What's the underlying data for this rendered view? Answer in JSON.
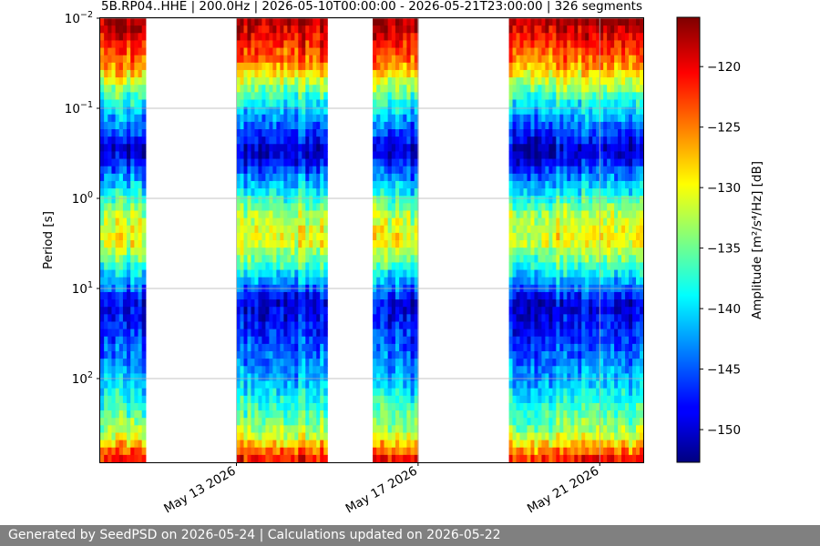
{
  "chart_data": {
    "type": "heatmap",
    "title": "5B.RP04..HHE | 200.0Hz | 2026-05-10T00:00:00 - 2026-05-21T23:00:00 | 326 segments",
    "ylabel": "Period [s]",
    "colorbar_label": "Amplitude [m²/s⁴/Hz] [dB]",
    "x_ticks": [
      "May 13 2026",
      "May 17 2026",
      "May 21 2026"
    ],
    "y_scale": "log",
    "y_inverted": true,
    "y_ticks": [
      {
        "base": "10",
        "exp": "−2"
      },
      {
        "base": "10",
        "exp": "−1"
      },
      {
        "base": "10",
        "exp": "0"
      },
      {
        "base": "10",
        "exp": "1"
      },
      {
        "base": "10",
        "exp": "2"
      }
    ],
    "ylim": [
      0.01,
      850
    ],
    "xlim": [
      "2026-05-10T00:00:00",
      "2026-05-21T23:00:00"
    ],
    "colorbar_ticks": [
      -120,
      -125,
      -130,
      -135,
      -140,
      -145,
      -150
    ],
    "clim": [
      -152.7,
      -116.0
    ],
    "colormap": "jet",
    "grid": true,
    "data_segments": [
      {
        "start": "2026-05-10T00:00:00",
        "end": "2026-05-11T00:00:00"
      },
      {
        "start": "2026-05-13T00:00:00",
        "end": "2026-05-15T00:00:00"
      },
      {
        "start": "2026-05-16T00:00:00",
        "end": "2026-05-17T00:00:00"
      },
      {
        "start": "2026-05-19T00:00:00",
        "end": "2026-05-21T23:00:00"
      }
    ],
    "typical_profile_db": [
      {
        "period_s": 0.01,
        "db": -117
      },
      {
        "period_s": 0.03,
        "db": -125
      },
      {
        "period_s": 0.08,
        "db": -138
      },
      {
        "period_s": 0.3,
        "db": -151
      },
      {
        "period_s": 1.5,
        "db": -133
      },
      {
        "period_s": 3,
        "db": -130
      },
      {
        "period_s": 7,
        "db": -140
      },
      {
        "period_s": 15,
        "db": -150
      },
      {
        "period_s": 100,
        "db": -142
      },
      {
        "period_s": 400,
        "db": -133
      },
      {
        "period_s": 850,
        "db": -120
      }
    ]
  },
  "footer_text": "Generated by SeedPSD on 2026-05-24 | Calculations updated on 2026-05-22"
}
